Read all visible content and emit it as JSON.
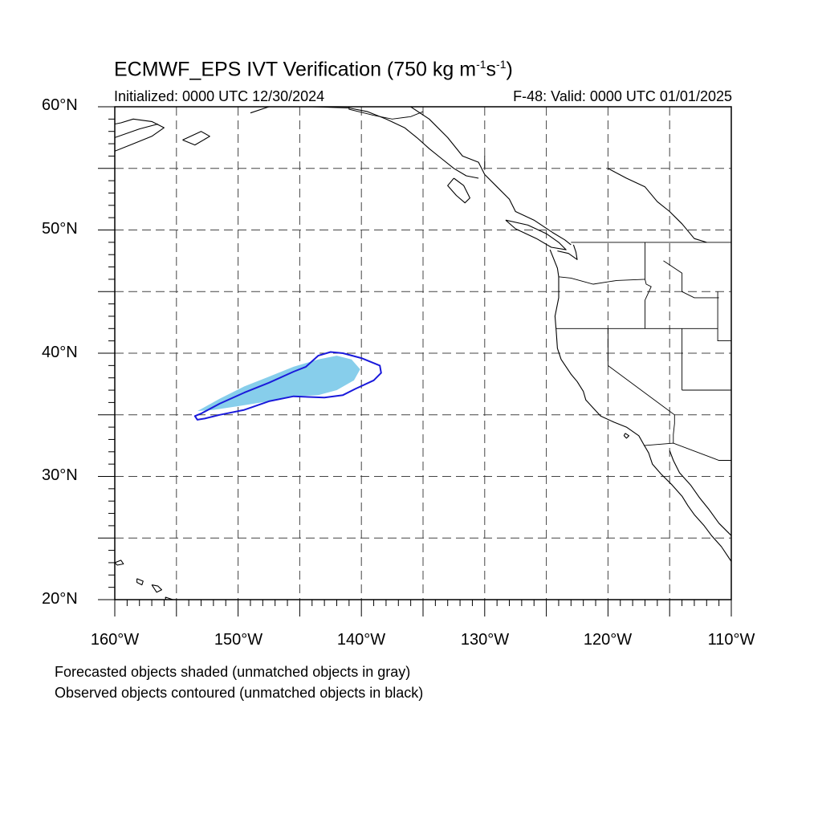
{
  "title": {
    "main": "ECMWF_EPS IVT Verification (750 kg m",
    "exp1": "-1",
    "mid": "s",
    "exp2": "-1",
    "end": ")"
  },
  "subtitle_left": "Initialized: 0000 UTC 12/30/2024",
  "subtitle_right": "F-48: Valid: 0000 UTC 01/01/2025",
  "lat_labels": [
    "60°N",
    "50°N",
    "40°N",
    "30°N",
    "20°N"
  ],
  "lon_labels": [
    "160°W",
    "150°W",
    "140°W",
    "130°W",
    "120°W",
    "110°W"
  ],
  "map_extent": {
    "lon_min": -160,
    "lon_max": -110,
    "lat_min": 20,
    "lat_max": 60
  },
  "grid_spacing_deg": 5,
  "notes": [
    "Forecasted objects shaded (unmatched objects in gray)",
    "Observed objects contoured (unmatched objects in black)"
  ],
  "colors": {
    "forecast_fill": "#87ceeb",
    "observed_contour": "#1a1adb",
    "coastline": "#000000",
    "grid": "#444444"
  },
  "forecast_object": [
    [
      -153.3,
      35.3
    ],
    [
      -151.5,
      36.3
    ],
    [
      -149.5,
      37.3
    ],
    [
      -147.5,
      38.1
    ],
    [
      -145.5,
      38.9
    ],
    [
      -143.5,
      39.5
    ],
    [
      -142.0,
      39.8
    ],
    [
      -140.8,
      39.5
    ],
    [
      -140.1,
      38.7
    ],
    [
      -140.6,
      37.8
    ],
    [
      -142.0,
      37.0
    ],
    [
      -143.5,
      36.6
    ],
    [
      -145.5,
      36.5
    ],
    [
      -147.5,
      36.1
    ],
    [
      -150.0,
      35.7
    ],
    [
      -152.0,
      35.4
    ]
  ],
  "observed_contour": [
    [
      -153.5,
      34.9
    ],
    [
      -153.0,
      35.1
    ],
    [
      -151.5,
      35.9
    ],
    [
      -149.5,
      36.8
    ],
    [
      -147.5,
      37.6
    ],
    [
      -145.5,
      38.5
    ],
    [
      -144.5,
      38.9
    ],
    [
      -143.5,
      39.8
    ],
    [
      -142.5,
      40.1
    ],
    [
      -141.5,
      40.0
    ],
    [
      -140.0,
      39.6
    ],
    [
      -138.5,
      39.0
    ],
    [
      -138.4,
      38.4
    ],
    [
      -139.0,
      37.8
    ],
    [
      -140.5,
      37.1
    ],
    [
      -141.5,
      36.6
    ],
    [
      -143.0,
      36.4
    ],
    [
      -145.5,
      36.5
    ],
    [
      -147.5,
      36.1
    ],
    [
      -149.5,
      35.4
    ],
    [
      -151.5,
      35.0
    ],
    [
      -152.7,
      34.7
    ],
    [
      -153.3,
      34.6
    ]
  ],
  "coastlines": [
    [
      [
        -160,
        56.4
      ],
      [
        -158.5,
        57.0
      ],
      [
        -157.0,
        57.6
      ],
      [
        -156.0,
        58.3
      ],
      [
        -157.0,
        58.8
      ],
      [
        -158.5,
        59.0
      ],
      [
        -159.5,
        58.7
      ],
      [
        -160,
        58.6
      ]
    ],
    [
      [
        -160,
        57.5
      ],
      [
        -158.0,
        58.2
      ],
      [
        -156.5,
        58.6
      ]
    ],
    [
      [
        -154.5,
        57.3
      ],
      [
        -153.0,
        58.0
      ],
      [
        -152.3,
        57.6
      ],
      [
        -153.5,
        56.9
      ],
      [
        -154.5,
        57.3
      ]
    ],
    [
      [
        -149.0,
        59.5
      ],
      [
        -147.5,
        60.0
      ],
      [
        -145.5,
        60.0
      ],
      [
        -144.0,
        60.0
      ],
      [
        -141.0,
        59.9
      ],
      [
        -139.5,
        59.6
      ],
      [
        -138.0,
        59.0
      ],
      [
        -136.5,
        58.3
      ],
      [
        -135.5,
        57.5
      ],
      [
        -134.5,
        56.6
      ],
      [
        -133.5,
        55.8
      ],
      [
        -132.5,
        55.0
      ],
      [
        -131.5,
        54.4
      ],
      [
        -130.5,
        54.2
      ]
    ],
    [
      [
        -136.0,
        60.0
      ],
      [
        -134.5,
        59.0
      ],
      [
        -133.0,
        57.5
      ],
      [
        -131.8,
        56.0
      ],
      [
        -130.5,
        55.5
      ],
      [
        -130.0,
        54.5
      ],
      [
        -129.0,
        53.5
      ],
      [
        -128.0,
        52.5
      ],
      [
        -127.5,
        51.5
      ],
      [
        -126.0,
        50.8
      ],
      [
        -124.5,
        49.8
      ],
      [
        -123.5,
        49.2
      ],
      [
        -123.0,
        48.8
      ]
    ],
    [
      [
        -128.3,
        50.8
      ],
      [
        -126.5,
        50.4
      ],
      [
        -125.0,
        49.7
      ],
      [
        -124.0,
        49.0
      ],
      [
        -123.4,
        48.4
      ],
      [
        -124.6,
        48.6
      ],
      [
        -125.8,
        49.3
      ],
      [
        -127.5,
        50.1
      ],
      [
        -128.3,
        50.8
      ]
    ],
    [
      [
        -132.5,
        54.2
      ],
      [
        -131.7,
        53.6
      ],
      [
        -131.2,
        52.6
      ],
      [
        -131.6,
        52.2
      ],
      [
        -132.3,
        52.8
      ],
      [
        -133.0,
        53.6
      ],
      [
        -132.5,
        54.2
      ]
    ],
    [
      [
        -124.7,
        48.4
      ],
      [
        -124.1,
        46.9
      ],
      [
        -124.0,
        46.2
      ],
      [
        -124.0,
        44.5
      ],
      [
        -124.3,
        43.0
      ],
      [
        -124.2,
        41.8
      ],
      [
        -124.1,
        40.4
      ],
      [
        -123.8,
        39.5
      ],
      [
        -123.0,
        38.3
      ],
      [
        -122.5,
        37.7
      ],
      [
        -122.0,
        36.9
      ],
      [
        -121.8,
        36.2
      ],
      [
        -120.6,
        34.9
      ],
      [
        -119.5,
        34.4
      ],
      [
        -118.5,
        34.0
      ],
      [
        -117.5,
        33.3
      ],
      [
        -117.1,
        32.6
      ],
      [
        -116.7,
        31.9
      ],
      [
        -116.4,
        31.0
      ],
      [
        -115.7,
        30.2
      ],
      [
        -114.8,
        29.3
      ],
      [
        -114.0,
        28.4
      ],
      [
        -113.5,
        27.6
      ],
      [
        -113.0,
        26.9
      ],
      [
        -112.2,
        26.0
      ],
      [
        -111.6,
        25.2
      ],
      [
        -110.8,
        24.3
      ],
      [
        -110.0,
        23.1
      ]
    ],
    [
      [
        -115.0,
        32.1
      ],
      [
        -114.7,
        31.3
      ],
      [
        -114.2,
        30.3
      ],
      [
        -113.3,
        29.3
      ],
      [
        -112.6,
        28.3
      ],
      [
        -111.8,
        27.3
      ],
      [
        -111.0,
        26.2
      ],
      [
        -110.0,
        25.2
      ]
    ],
    [
      [
        -124.1,
        48.3
      ],
      [
        -123.2,
        48.1
      ],
      [
        -122.5,
        47.6
      ],
      [
        -122.6,
        48.2
      ],
      [
        -122.8,
        48.8
      ]
    ],
    [
      [
        -160,
        23.0
      ],
      [
        -159.5,
        23.2
      ],
      [
        -159.3,
        22.9
      ],
      [
        -159.8,
        22.8
      ],
      [
        -160,
        23.0
      ]
    ],
    [
      [
        -158.2,
        21.7
      ],
      [
        -157.7,
        21.5
      ],
      [
        -157.8,
        21.2
      ],
      [
        -158.2,
        21.4
      ],
      [
        -158.2,
        21.7
      ]
    ],
    [
      [
        -157.0,
        21.2
      ],
      [
        -156.5,
        21.1
      ],
      [
        -156.2,
        20.8
      ],
      [
        -156.6,
        20.6
      ],
      [
        -157.0,
        21.2
      ]
    ],
    [
      [
        -155.9,
        20.2
      ],
      [
        -155.0,
        19.9
      ],
      [
        -155.1,
        19.2
      ],
      [
        -155.7,
        19.0
      ],
      [
        -155.9,
        20.2
      ]
    ],
    [
      [
        -118.6,
        33.5
      ],
      [
        -118.3,
        33.3
      ],
      [
        -118.5,
        33.1
      ],
      [
        -118.7,
        33.3
      ],
      [
        -118.6,
        33.5
      ]
    ],
    [
      [
        -111.0,
        60.0
      ],
      [
        -110,
        60.2
      ]
    ],
    [
      [
        -120.0,
        55.0
      ],
      [
        -118.5,
        54.2
      ],
      [
        -117.0,
        53.5
      ],
      [
        -116.0,
        52.3
      ],
      [
        -115.0,
        51.5
      ],
      [
        -114.0,
        50.5
      ],
      [
        -113.0,
        49.3
      ],
      [
        -112.0,
        49.0
      ]
    ]
  ],
  "borders": [
    [
      [
        -141.0,
        60.0
      ],
      [
        -141.0,
        59.8
      ],
      [
        -139.0,
        59.3
      ],
      [
        -137.5,
        59.0
      ],
      [
        -136.0,
        59.2
      ],
      [
        -135.0,
        59.6
      ]
    ],
    [
      [
        -130.0,
        56.0
      ],
      [
        -130.0,
        55.0
      ]
    ],
    [
      [
        -123.0,
        49.0
      ],
      [
        -110,
        49.0
      ]
    ],
    [
      [
        -117.0,
        49.0
      ],
      [
        -117.0,
        46.0
      ],
      [
        -116.9,
        45.6
      ],
      [
        -116.5,
        45.4
      ],
      [
        -117.0,
        44.3
      ],
      [
        -117.0,
        42.0
      ]
    ],
    [
      [
        -124.0,
        46.2
      ],
      [
        -123.0,
        46.1
      ],
      [
        -121.2,
        45.6
      ],
      [
        -119.3,
        45.9
      ],
      [
        -117.0,
        46.0
      ]
    ],
    [
      [
        -124.2,
        42.0
      ],
      [
        -111.1,
        42.0
      ]
    ],
    [
      [
        -120.0,
        42.0
      ],
      [
        -120.0,
        39.0
      ],
      [
        -114.6,
        35.0
      ],
      [
        -114.6,
        34.3
      ],
      [
        -114.7,
        33.4
      ],
      [
        -114.7,
        32.7
      ]
    ],
    [
      [
        -114.0,
        42.0
      ],
      [
        -114.0,
        37.0
      ]
    ],
    [
      [
        -115.5,
        47.5
      ],
      [
        -114.0,
        46.5
      ],
      [
        -114.0,
        45.0
      ],
      [
        -113.0,
        44.5
      ],
      [
        -111.0,
        44.5
      ]
    ],
    [
      [
        -111.1,
        45.0
      ],
      [
        -111.1,
        41.0
      ],
      [
        -110,
        41.0
      ]
    ],
    [
      [
        -117.1,
        32.5
      ],
      [
        -114.7,
        32.7
      ],
      [
        -111.0,
        31.3
      ],
      [
        -110,
        31.3
      ]
    ],
    [
      [
        -110.0,
        37.0
      ],
      [
        -114.0,
        37.0
      ]
    ]
  ]
}
